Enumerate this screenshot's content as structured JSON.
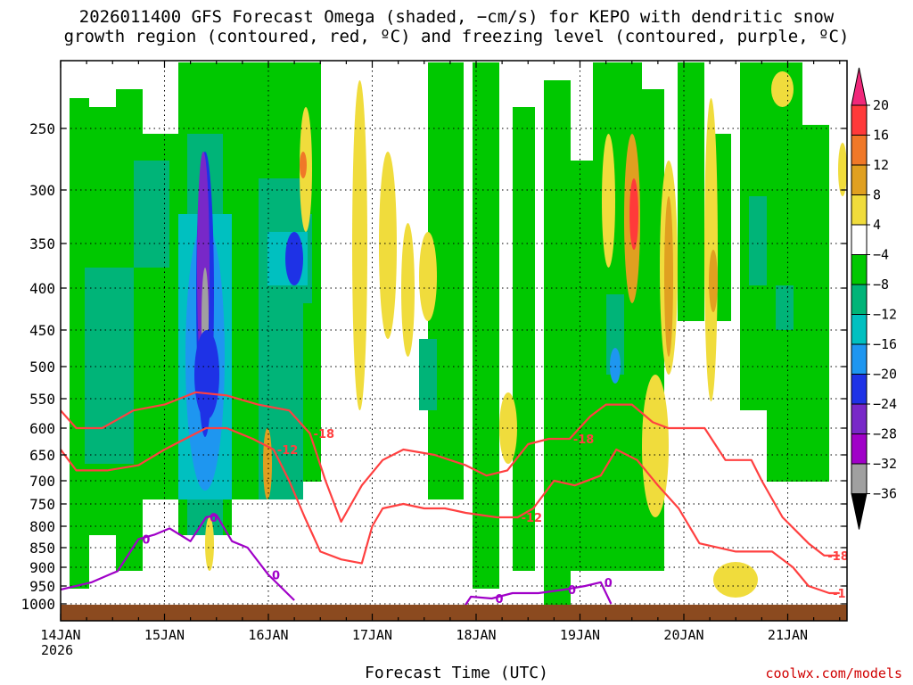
{
  "title_line1": "2026011400 GFS Forecast Omega (shaded, −cm/s) for KEPO with dendritic snow",
  "title_line2": "growth region (contoured, red, ºC) and freezing level (contoured, purple, ºC)",
  "xlabel": "Forecast Time (UTC)",
  "credit": "coolwx.com/models",
  "year_label": "2026",
  "chart_data": {
    "type": "heatmap",
    "title": "2026011400 GFS Forecast Omega (shaded, −cm/s) for KEPO",
    "xlabel": "Forecast Time (UTC)",
    "ylabel": "",
    "x_ticks": [
      "14JAN",
      "15JAN",
      "16JAN",
      "17JAN",
      "18JAN",
      "19JAN",
      "20JAN",
      "21JAN"
    ],
    "x_range_days": [
      0,
      7.5
    ],
    "y_ticks": [
      250,
      300,
      350,
      400,
      450,
      500,
      550,
      600,
      650,
      700,
      750,
      800,
      850,
      900,
      950,
      1000
    ],
    "y_range_hpa": [
      200,
      1020
    ],
    "colorbar": {
      "labels": [
        "20",
        "16",
        "12",
        "8",
        "4",
        "−4",
        "−8",
        "−12",
        "−16",
        "−20",
        "−24",
        "−28",
        "−32",
        "−36"
      ],
      "colors": [
        "#f0287a",
        "#ff3a3a",
        "#f07828",
        "#e0a020",
        "#f0dc3c",
        "#ffffff",
        "#00c800",
        "#00b478",
        "#00c0c0",
        "#1e96f0",
        "#1e32e6",
        "#7828c8",
        "#a000c8",
        "#a0a0a0",
        "#000000"
      ]
    },
    "contours": [
      {
        "label": "-18",
        "color": "#ff4040",
        "points": [
          [
            0.0,
            570
          ],
          [
            0.15,
            600
          ],
          [
            0.4,
            600
          ],
          [
            0.7,
            570
          ],
          [
            1.0,
            560
          ],
          [
            1.3,
            540
          ],
          [
            1.6,
            545
          ],
          [
            1.9,
            560
          ],
          [
            2.2,
            570
          ],
          [
            2.4,
            610
          ],
          [
            2.55,
            700
          ],
          [
            2.7,
            790
          ],
          [
            2.9,
            710
          ],
          [
            3.1,
            660
          ],
          [
            3.3,
            640
          ],
          [
            3.6,
            650
          ],
          [
            3.9,
            670
          ],
          [
            4.1,
            690
          ],
          [
            4.3,
            680
          ],
          [
            4.5,
            630
          ],
          [
            4.7,
            620
          ],
          [
            4.9,
            620
          ],
          [
            5.1,
            580
          ],
          [
            5.25,
            560
          ],
          [
            5.5,
            560
          ],
          [
            5.7,
            590
          ],
          [
            5.85,
            600
          ],
          [
            6.0,
            600
          ],
          [
            6.2,
            600
          ],
          [
            6.4,
            660
          ],
          [
            6.65,
            660
          ],
          [
            6.75,
            700
          ],
          [
            6.95,
            780
          ],
          [
            7.2,
            840
          ],
          [
            7.35,
            870
          ],
          [
            7.5,
            870
          ]
        ]
      },
      {
        "label": "-12",
        "color": "#ff4040",
        "points": [
          [
            0.0,
            640
          ],
          [
            0.15,
            680
          ],
          [
            0.45,
            680
          ],
          [
            0.75,
            670
          ],
          [
            1.0,
            640
          ],
          [
            1.2,
            620
          ],
          [
            1.4,
            600
          ],
          [
            1.6,
            600
          ],
          [
            1.85,
            620
          ],
          [
            2.05,
            640
          ],
          [
            2.2,
            700
          ],
          [
            2.35,
            780
          ],
          [
            2.5,
            860
          ],
          [
            2.7,
            880
          ],
          [
            2.9,
            890
          ],
          [
            3.0,
            800
          ],
          [
            3.1,
            760
          ],
          [
            3.3,
            750
          ],
          [
            3.5,
            760
          ],
          [
            3.7,
            760
          ],
          [
            3.9,
            770
          ],
          [
            4.2,
            780
          ],
          [
            4.4,
            780
          ],
          [
            4.55,
            760
          ],
          [
            4.75,
            700
          ],
          [
            4.95,
            710
          ],
          [
            5.2,
            690
          ],
          [
            5.35,
            640
          ],
          [
            5.55,
            660
          ],
          [
            5.75,
            710
          ],
          [
            5.95,
            760
          ],
          [
            6.15,
            840
          ],
          [
            6.5,
            860
          ],
          [
            6.85,
            860
          ],
          [
            7.05,
            900
          ],
          [
            7.2,
            950
          ],
          [
            7.4,
            970
          ],
          [
            7.5,
            970
          ]
        ]
      },
      {
        "label": "0",
        "color": "#a000c8",
        "points": [
          [
            0.0,
            960
          ],
          [
            0.3,
            940
          ],
          [
            0.55,
            910
          ],
          [
            0.75,
            830
          ],
          [
            0.9,
            820
          ],
          [
            1.05,
            805
          ],
          [
            1.25,
            835
          ],
          [
            1.4,
            780
          ],
          [
            1.5,
            775
          ],
          [
            1.65,
            835
          ],
          [
            1.8,
            850
          ],
          [
            2.0,
            920
          ],
          [
            2.25,
            990
          ]
        ]
      },
      {
        "label": "0",
        "color": "#a000c8",
        "points": [
          [
            3.85,
            1010
          ],
          [
            3.95,
            980
          ],
          [
            4.15,
            985
          ],
          [
            4.35,
            970
          ],
          [
            4.6,
            970
          ],
          [
            4.85,
            960
          ],
          [
            5.05,
            950
          ],
          [
            5.2,
            940
          ],
          [
            5.3,
            1000
          ]
        ]
      }
    ]
  }
}
